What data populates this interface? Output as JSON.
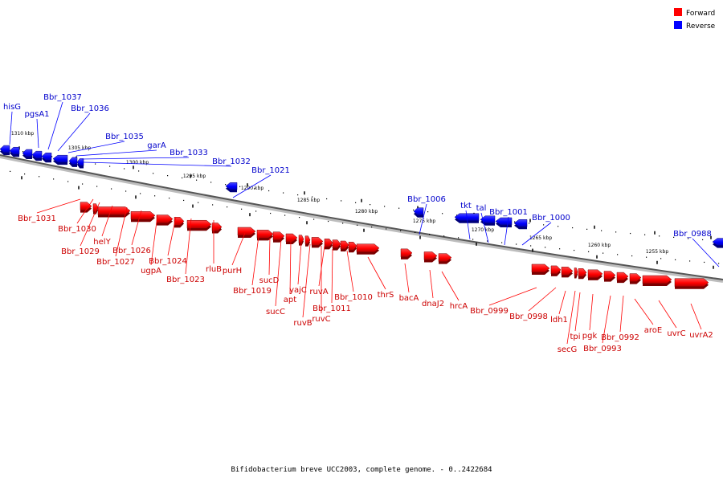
{
  "caption": "Bifidobacterium breve UCC2003, complete genome. - 0..2422684",
  "legend": [
    {
      "label": "Forward",
      "color": "#ff0000"
    },
    {
      "label": "Reverse",
      "color": "#0000ff"
    }
  ],
  "scale_labels": [
    "1310 kbp",
    "1305 kbp",
    "1300 kbp",
    "1295 kbp",
    "1290 kbp",
    "1285 kbp",
    "1280 kbp",
    "1275 kbp",
    "1270 kbp",
    "1265 kbp",
    "1260 kbp",
    "1255 kbp"
  ],
  "reverse_genes": [
    "hisG",
    "pgsA1",
    "Bbr_1037",
    "Bbr_1036",
    "Bbr_1035",
    "garA",
    "Bbr_1033",
    "Bbr_1032",
    "Bbr_1021",
    "Bbr_1006",
    "tkt",
    "tal",
    "Bbr_1001",
    "Bbr_1000",
    "Bbr_0988"
  ],
  "forward_genes": [
    "Bbr_1031",
    "Bbr_1030",
    "Bbr_1029",
    "helY",
    "Bbr_1027",
    "Bbr_1026",
    "ugpA",
    "Bbr_1024",
    "Bbr_1023",
    "rluB",
    "purH",
    "Bbr_1019",
    "sucC",
    "sucD",
    "apt",
    "yajC",
    "ruvB",
    "ruvC",
    "ruvA",
    "Bbr_1011",
    "Bbr_1010",
    "thrS",
    "bacA",
    "dnaJ2",
    "hrcA",
    "Bbr_0999",
    "Bbr_0998",
    "secG",
    "ldh1",
    "tpi",
    "pgk",
    "Bbr_0993",
    "Bbr_0992",
    "aroE",
    "uvrC",
    "uvrA2"
  ]
}
